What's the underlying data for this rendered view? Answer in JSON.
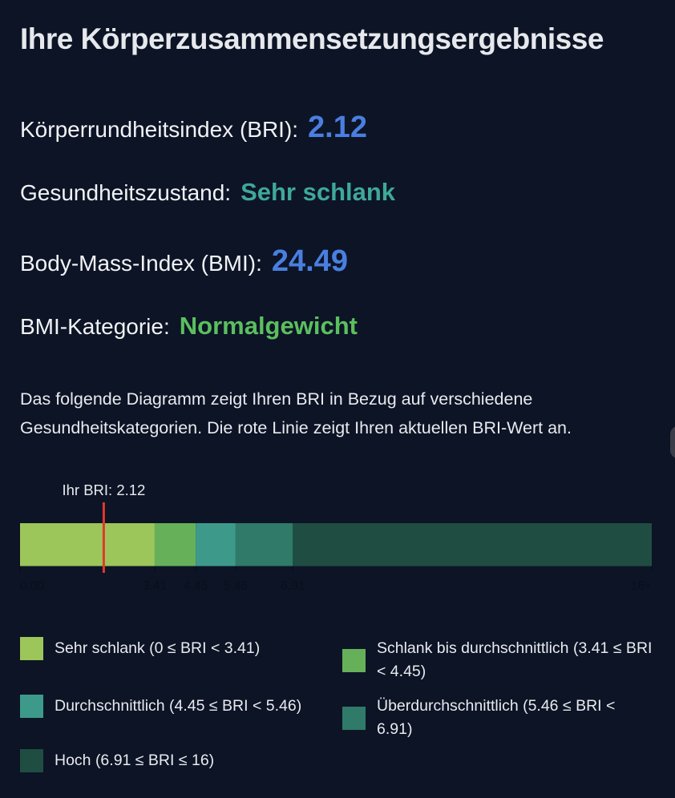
{
  "header": {
    "title": "Ihre Körperzusammensetzungsergebnisse"
  },
  "results": {
    "bri": {
      "label": "Körperrundheitsindex (BRI):",
      "value": "2.12"
    },
    "health_status": {
      "label": "Gesundheitszustand:",
      "value": "Sehr schlank"
    },
    "bmi": {
      "label": "Body-Mass-Index (BMI):",
      "value": "24.49"
    },
    "bmi_category": {
      "label": "BMI-Kategorie:",
      "value": "Normalgewicht"
    }
  },
  "description": "Das folgende Diagramm zeigt Ihren BRI in Bezug auf verschiedene Gesundheitskategorien. Die rote Linie zeigt Ihren aktuellen BRI-Wert an.",
  "chart_data": {
    "type": "bar",
    "orientation": "horizontal-segmented",
    "title": "",
    "xlabel": "",
    "ylabel": "",
    "xlim": [
      0,
      16
    ],
    "marker": {
      "label": "Ihr BRI: 2.12",
      "value": 2.12,
      "color": "#e0392b"
    },
    "segments": [
      {
        "start": 0,
        "end": 3.41,
        "color": "#9cc65a"
      },
      {
        "start": 3.41,
        "end": 4.45,
        "color": "#66b05a"
      },
      {
        "start": 4.45,
        "end": 5.46,
        "color": "#3d9a8b"
      },
      {
        "start": 5.46,
        "end": 6.91,
        "color": "#2f7a68"
      },
      {
        "start": 6.91,
        "end": 16,
        "color": "#204d42"
      }
    ],
    "ticks": [
      {
        "value": 0,
        "label": "0.00"
      },
      {
        "value": 3.41,
        "label": "3.41"
      },
      {
        "value": 4.45,
        "label": "4.45"
      },
      {
        "value": 5.46,
        "label": "5.46"
      },
      {
        "value": 6.91,
        "label": "6.91"
      },
      {
        "value": 16,
        "label": "16+"
      }
    ],
    "legend": [
      {
        "label": "Sehr schlank (0 ≤ BRI < 3.41)",
        "color": "#9cc65a"
      },
      {
        "label": "Schlank bis durchschnittlich (3.41 ≤ BRI < 4.45)",
        "color": "#66b05a"
      },
      {
        "label": "Durchschnittlich (4.45 ≤ BRI < 5.46)",
        "color": "#3d9a8b"
      },
      {
        "label": "Überdurchschnittlich (5.46 ≤ BRI < 6.91)",
        "color": "#2f7a68"
      },
      {
        "label": "Hoch (6.91 ≤ BRI ≤ 16)",
        "color": "#204d42"
      }
    ]
  }
}
